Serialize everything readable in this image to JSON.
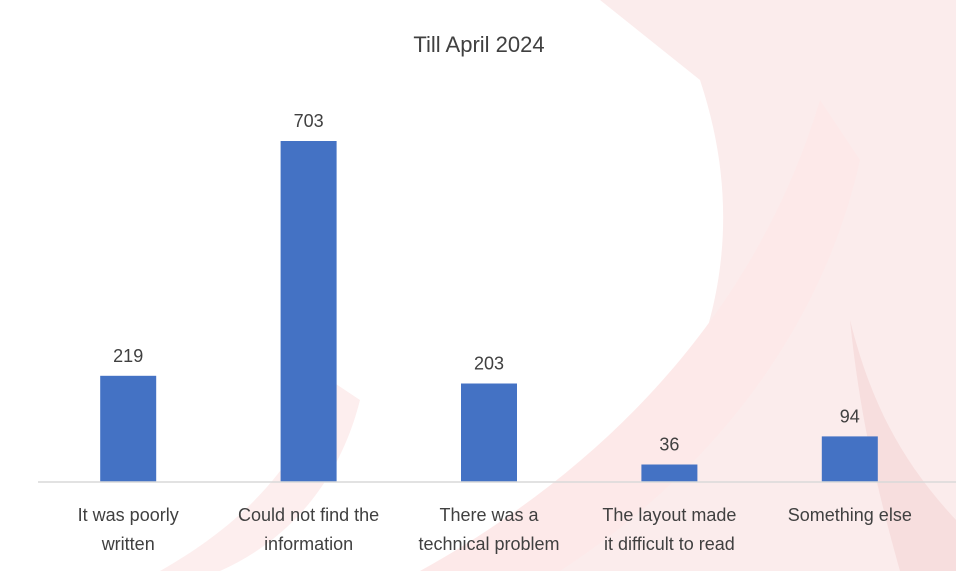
{
  "chart_data": {
    "type": "bar",
    "title": "Till April 2024",
    "categories": [
      [
        "It was poorly",
        "written"
      ],
      [
        "Could not find the",
        "information"
      ],
      [
        "There was a",
        "technical problem"
      ],
      [
        "The layout made",
        "it difficult to read"
      ],
      [
        "Something else"
      ]
    ],
    "values": [
      219,
      703,
      203,
      36,
      94
    ],
    "xlabel": "",
    "ylabel": "",
    "ylim": [
      0,
      800
    ],
    "grid": false,
    "legend": "none",
    "bar_color": "#4472C4"
  }
}
